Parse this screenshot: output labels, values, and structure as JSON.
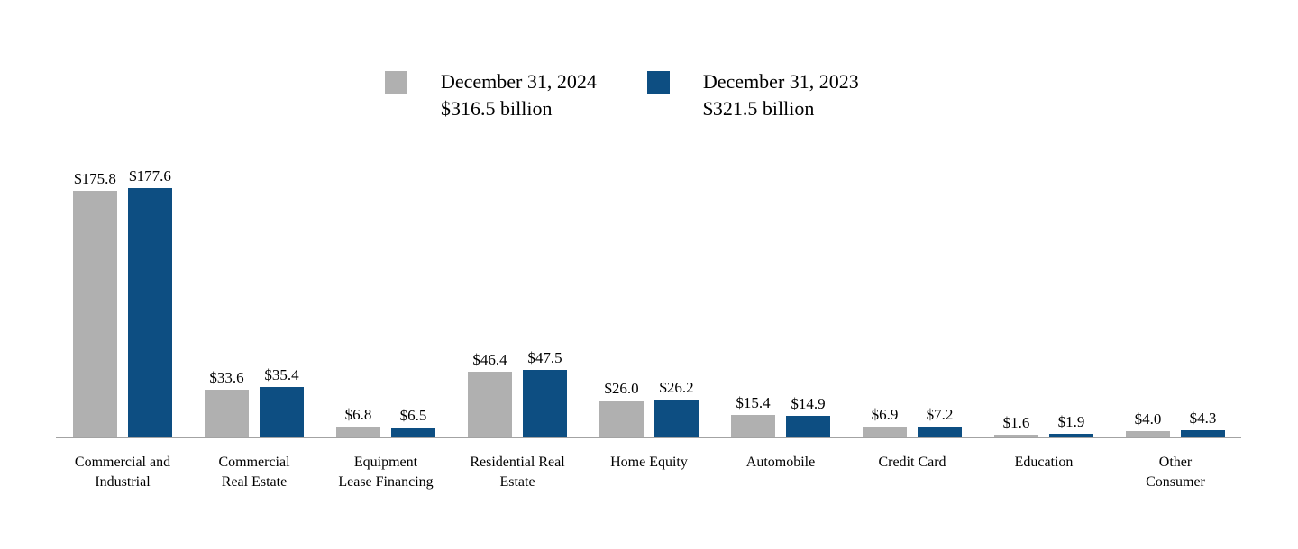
{
  "chart_data": {
    "type": "bar",
    "title": "",
    "xlabel": "",
    "ylabel": "",
    "ylim": [
      0,
      180
    ],
    "grid": false,
    "legend_position": "top",
    "value_prefix": "$",
    "axis_color": "#a3a3a3",
    "categories": [
      [
        "Commercial and",
        "Industrial"
      ],
      [
        "Commercial",
        "Real Estate"
      ],
      [
        "Equipment",
        "Lease Financing"
      ],
      [
        "Residential Real",
        "Estate"
      ],
      [
        "Home Equity"
      ],
      [
        "Automobile"
      ],
      [
        "Credit Card"
      ],
      [
        "Education"
      ],
      [
        "Other",
        "Consumer"
      ]
    ],
    "series": [
      {
        "name": "December 31, 2024",
        "total_label": "$316.5 billion",
        "color": "#b0b0b0",
        "values": [
          175.8,
          33.6,
          6.8,
          46.4,
          26.0,
          15.4,
          6.9,
          1.6,
          4.0
        ]
      },
      {
        "name": "December 31, 2023",
        "total_label": "$321.5 billion",
        "color": "#0d4e82",
        "values": [
          177.6,
          35.4,
          6.5,
          47.5,
          26.2,
          14.9,
          7.2,
          1.9,
          4.3
        ]
      }
    ]
  }
}
